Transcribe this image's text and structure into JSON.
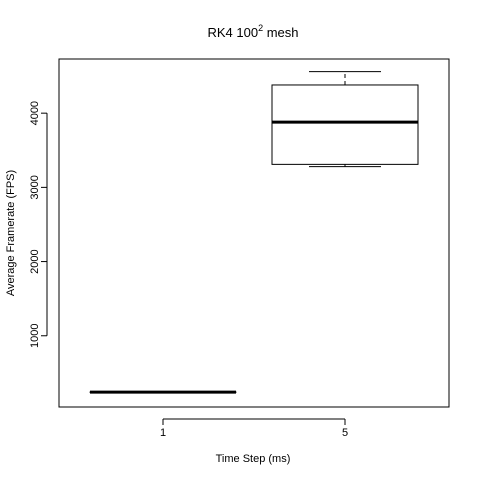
{
  "chart_data": {
    "type": "boxplot",
    "title": {
      "prefix": "RK4  100",
      "superscript": "2",
      "suffix": "  mesh"
    },
    "xlabel": "Time Step (ms)",
    "ylabel": "Average Framerate (FPS)",
    "categories": [
      "1",
      "5"
    ],
    "ylim": [
      40,
      4730
    ],
    "yticks": [
      1000,
      2000,
      3000,
      4000
    ],
    "ytick_labels": [
      "1000",
      "2000",
      "3000",
      "4000"
    ],
    "boxes": [
      {
        "category": "1",
        "min": 240,
        "q1": 240,
        "median": 240,
        "q3": 240,
        "max": 240
      },
      {
        "category": "5",
        "min": 3280,
        "q1": 3310,
        "median": 3880,
        "q3": 4380,
        "max": 4560
      }
    ],
    "grid": false,
    "legend": "none"
  }
}
